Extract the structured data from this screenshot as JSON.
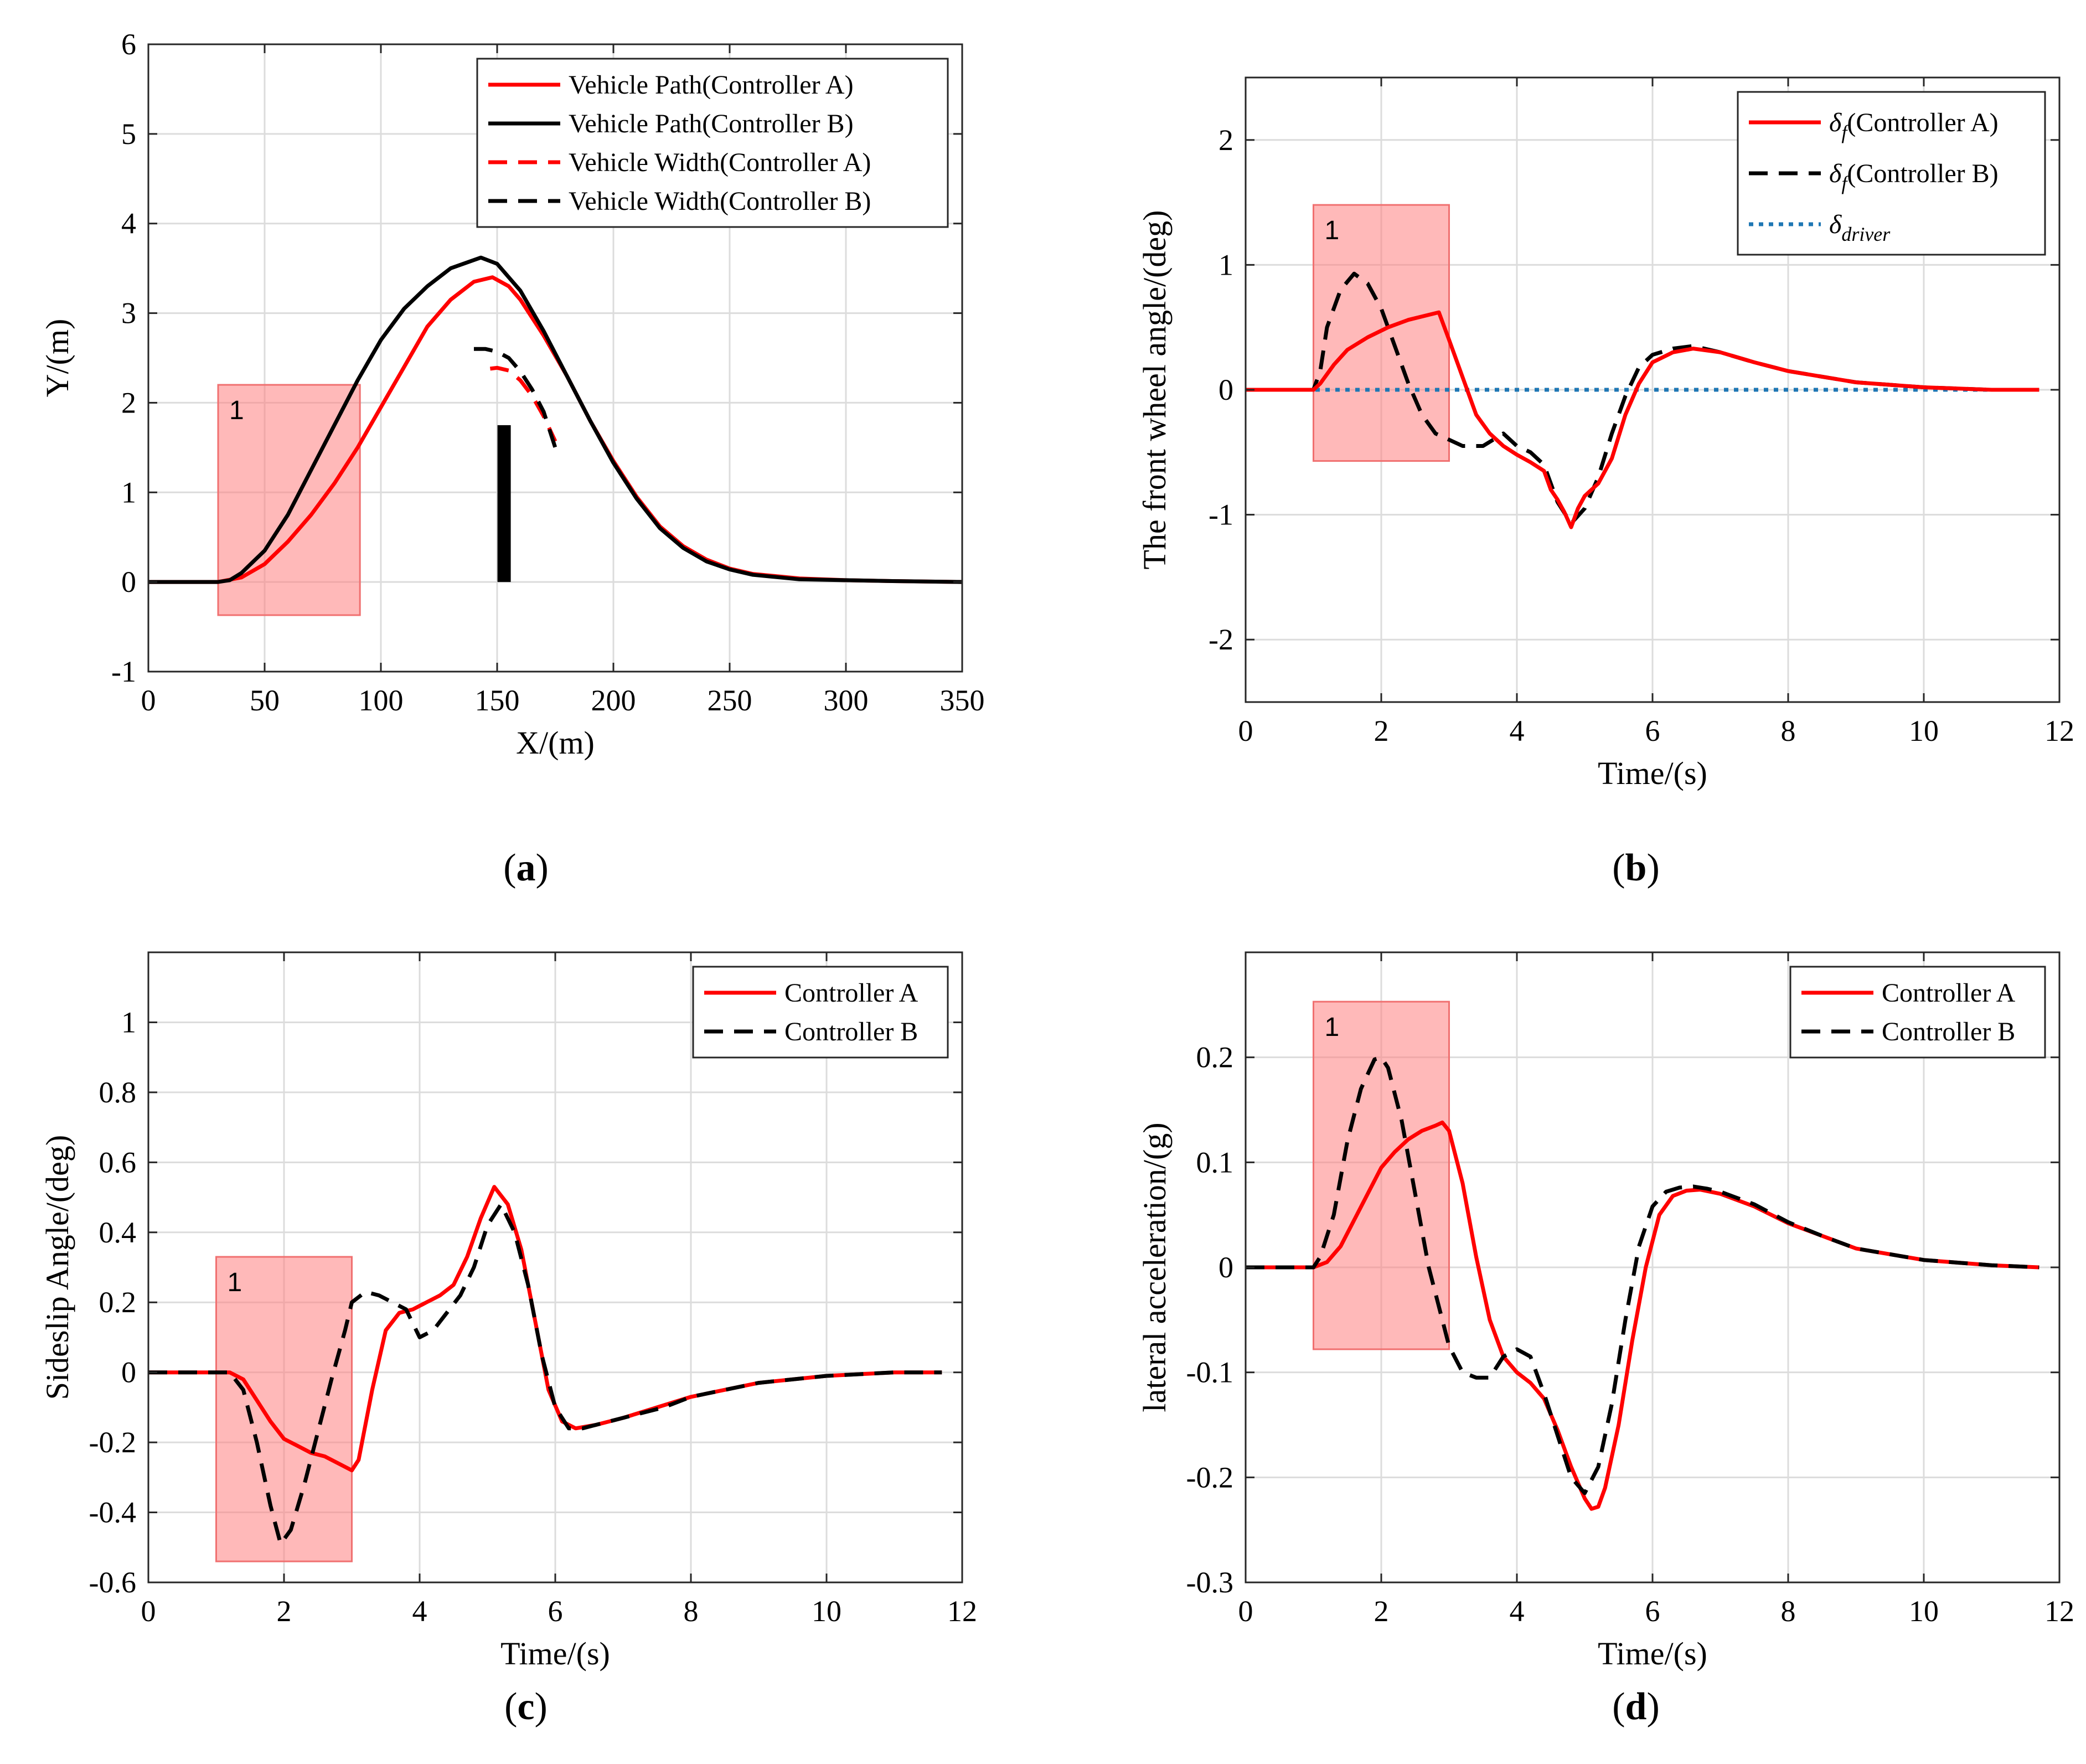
{
  "panels": [
    {
      "id": "a",
      "caption": "(a)"
    },
    {
      "id": "b",
      "caption": "(b)"
    },
    {
      "id": "c",
      "caption": "(c)"
    },
    {
      "id": "d",
      "caption": "(d)"
    }
  ],
  "chart_data": [
    {
      "panel": "a",
      "type": "line",
      "xlabel": "X/(m)",
      "ylabel": "Y/(m)",
      "xlim": [
        0,
        350
      ],
      "ylim": [
        -1,
        6
      ],
      "xticks": [
        0,
        50,
        100,
        150,
        200,
        250,
        300,
        350
      ],
      "yticks": [
        -1,
        0,
        1,
        2,
        3,
        4,
        5,
        6
      ],
      "grid": true,
      "legend": "top-right",
      "region": {
        "label": "1",
        "x": [
          30,
          91
        ],
        "y": [
          -0.37,
          2.2
        ]
      },
      "obstacle": {
        "x": 153,
        "y": [
          0,
          1.75
        ],
        "color": "#000000"
      },
      "series": [
        {
          "name": "Vehicle Path(Controller A)",
          "color": "#ff0000",
          "dash": "solid",
          "x": [
            0,
            30,
            40,
            50,
            60,
            70,
            80,
            90,
            100,
            110,
            120,
            130,
            140,
            148,
            155,
            160,
            170,
            180,
            190,
            200,
            210,
            220,
            230,
            240,
            250,
            260,
            280,
            300,
            320,
            350
          ],
          "y": [
            0,
            0,
            0.05,
            0.2,
            0.45,
            0.75,
            1.1,
            1.5,
            1.95,
            2.4,
            2.85,
            3.15,
            3.35,
            3.4,
            3.3,
            3.15,
            2.75,
            2.3,
            1.8,
            1.35,
            0.95,
            0.62,
            0.4,
            0.25,
            0.15,
            0.09,
            0.04,
            0.02,
            0.01,
            0
          ]
        },
        {
          "name": "Vehicle Path(Controller B)",
          "color": "#000000",
          "dash": "solid",
          "x": [
            0,
            30,
            35,
            40,
            50,
            60,
            70,
            80,
            90,
            100,
            110,
            120,
            130,
            143,
            150,
            160,
            170,
            180,
            190,
            200,
            210,
            220,
            230,
            240,
            250,
            260,
            280,
            300,
            320,
            350
          ],
          "y": [
            0,
            0,
            0.02,
            0.1,
            0.35,
            0.75,
            1.25,
            1.75,
            2.25,
            2.7,
            3.05,
            3.3,
            3.5,
            3.62,
            3.55,
            3.25,
            2.8,
            2.3,
            1.8,
            1.33,
            0.93,
            0.6,
            0.38,
            0.23,
            0.14,
            0.08,
            0.03,
            0.02,
            0.01,
            0
          ]
        },
        {
          "name": "Vehicle Width(Controller A)",
          "color": "#ff0000",
          "dash": "dash",
          "x": [
            147,
            150,
            155,
            160,
            165,
            170,
            175
          ],
          "y": [
            2.38,
            2.39,
            2.36,
            2.25,
            2.08,
            1.85,
            1.57
          ]
        },
        {
          "name": "Vehicle Width(Controller B)",
          "color": "#000000",
          "dash": "dash",
          "x": [
            140,
            145,
            150,
            155,
            160,
            165,
            170,
            175
          ],
          "y": [
            2.6,
            2.6,
            2.57,
            2.5,
            2.35,
            2.15,
            1.9,
            1.5
          ]
        }
      ]
    },
    {
      "panel": "b",
      "type": "line",
      "xlabel": "Time/(s)",
      "ylabel": "The front wheel angle/(deg)",
      "xlim": [
        0,
        12
      ],
      "ylim": [
        -2.5,
        2.5
      ],
      "xticks": [
        0,
        2,
        4,
        6,
        8,
        10,
        12
      ],
      "yticks": [
        -2,
        -1,
        0,
        1,
        2
      ],
      "grid": true,
      "legend": "top-right",
      "region": {
        "label": "1",
        "x": [
          1,
          3
        ],
        "y": [
          -0.57,
          1.48
        ]
      },
      "series": [
        {
          "name": "δf (Controller A)",
          "legend_sym": "δ",
          "legend_sub": "f",
          "legend_rest": "(Controller A)",
          "color": "#ff0000",
          "dash": "solid",
          "x": [
            0,
            1,
            1.1,
            1.3,
            1.5,
            1.8,
            2.1,
            2.4,
            2.7,
            2.85,
            3.0,
            3.2,
            3.4,
            3.6,
            3.8,
            4.0,
            4.2,
            4.4,
            4.5,
            4.6,
            4.7,
            4.8,
            4.9,
            5.0,
            5.2,
            5.4,
            5.6,
            5.8,
            6.0,
            6.3,
            6.6,
            7.0,
            7.5,
            8,
            9,
            10,
            11,
            11.7
          ],
          "y": [
            0,
            0,
            0.05,
            0.2,
            0.32,
            0.42,
            0.5,
            0.56,
            0.6,
            0.62,
            0.4,
            0.1,
            -0.2,
            -0.35,
            -0.45,
            -0.52,
            -0.58,
            -0.65,
            -0.8,
            -0.88,
            -0.98,
            -1.1,
            -0.95,
            -0.85,
            -0.75,
            -0.55,
            -0.2,
            0.05,
            0.22,
            0.3,
            0.33,
            0.3,
            0.22,
            0.15,
            0.06,
            0.02,
            0,
            0
          ]
        },
        {
          "name": "δf (Controller B)",
          "legend_sym": "δ",
          "legend_sub": "f",
          "legend_rest": "(Controller B)",
          "color": "#000000",
          "dash": "dash",
          "x": [
            0,
            1,
            1.1,
            1.2,
            1.4,
            1.6,
            1.8,
            2.0,
            2.2,
            2.4,
            2.6,
            2.8,
            3.0,
            3.2,
            3.5,
            3.8,
            4.0,
            4.2,
            4.4,
            4.6,
            4.8,
            5.0,
            5.2,
            5.4,
            5.6,
            5.8,
            6.0,
            6.3,
            6.6,
            7.0,
            7.5,
            8,
            9,
            10,
            11,
            11.7
          ],
          "y": [
            0,
            0,
            0.15,
            0.5,
            0.8,
            0.93,
            0.85,
            0.65,
            0.35,
            0.05,
            -0.2,
            -0.35,
            -0.4,
            -0.45,
            -0.45,
            -0.35,
            -0.45,
            -0.5,
            -0.6,
            -0.9,
            -1.07,
            -0.95,
            -0.7,
            -0.35,
            -0.05,
            0.18,
            0.28,
            0.33,
            0.35,
            0.3,
            0.22,
            0.15,
            0.06,
            0.02,
            0,
            0
          ]
        },
        {
          "name": "δdriver",
          "legend_sym": "δ",
          "legend_sub": "driver",
          "legend_rest": "",
          "color": "#1f77b4",
          "dash": "dot",
          "x": [
            0,
            11.7
          ],
          "y": [
            0,
            0
          ]
        }
      ]
    },
    {
      "panel": "c",
      "type": "line",
      "xlabel": "Time/(s)",
      "ylabel": "Sideslip Angle/(deg)",
      "xlim": [
        0,
        12
      ],
      "ylim": [
        -0.6,
        1.2
      ],
      "xticks": [
        0,
        2,
        4,
        6,
        8,
        10,
        12
      ],
      "yticks": [
        -0.6,
        -0.4,
        -0.2,
        0,
        0.2,
        0.4,
        0.6,
        0.8,
        1
      ],
      "grid": true,
      "legend": "top-right",
      "region": {
        "label": "1",
        "x": [
          1,
          3
        ],
        "y": [
          -0.54,
          0.33
        ]
      },
      "series": [
        {
          "name": "Controller A",
          "color": "#ff0000",
          "dash": "solid",
          "x": [
            0,
            1,
            1.2,
            1.4,
            1.6,
            1.8,
            2.0,
            2.2,
            2.4,
            2.6,
            2.8,
            3.0,
            3.1,
            3.3,
            3.5,
            3.7,
            3.9,
            4.1,
            4.3,
            4.5,
            4.7,
            4.9,
            5.1,
            5.3,
            5.5,
            5.7,
            5.9,
            6.1,
            6.3,
            6.6,
            7,
            7.5,
            8,
            9,
            10,
            11,
            11.7
          ],
          "y": [
            0,
            0,
            0,
            -0.02,
            -0.08,
            -0.14,
            -0.19,
            -0.21,
            -0.23,
            -0.24,
            -0.26,
            -0.28,
            -0.25,
            -0.05,
            0.12,
            0.17,
            0.18,
            0.2,
            0.22,
            0.25,
            0.33,
            0.44,
            0.53,
            0.48,
            0.35,
            0.15,
            -0.05,
            -0.14,
            -0.16,
            -0.15,
            -0.13,
            -0.1,
            -0.07,
            -0.03,
            -0.01,
            0,
            0
          ]
        },
        {
          "name": "Controller B",
          "color": "#000000",
          "dash": "dash",
          "x": [
            0,
            1,
            1.2,
            1.4,
            1.6,
            1.8,
            1.95,
            2.1,
            2.3,
            2.5,
            2.7,
            2.9,
            3.0,
            3.2,
            3.4,
            3.6,
            3.8,
            4.0,
            4.2,
            4.4,
            4.6,
            4.8,
            5.0,
            5.2,
            5.4,
            5.6,
            5.8,
            6.0,
            6.2,
            6.4,
            6.8,
            7.2,
            7.6,
            8,
            9,
            10,
            11,
            11.7
          ],
          "y": [
            0,
            0,
            0,
            -0.05,
            -0.2,
            -0.38,
            -0.49,
            -0.45,
            -0.32,
            -0.17,
            -0.02,
            0.12,
            0.2,
            0.23,
            0.22,
            0.2,
            0.18,
            0.1,
            0.12,
            0.17,
            0.22,
            0.3,
            0.42,
            0.48,
            0.4,
            0.25,
            0.05,
            -0.1,
            -0.16,
            -0.16,
            -0.14,
            -0.12,
            -0.1,
            -0.07,
            -0.03,
            -0.01,
            0,
            0
          ]
        }
      ]
    },
    {
      "panel": "d",
      "type": "line",
      "xlabel": "Time/(s)",
      "ylabel": "lateral acceleration/(g)",
      "xlim": [
        0,
        12
      ],
      "ylim": [
        -0.3,
        0.3
      ],
      "xticks": [
        0,
        2,
        4,
        6,
        8,
        10,
        12
      ],
      "yticks": [
        -0.3,
        -0.2,
        -0.1,
        0,
        0.1,
        0.2
      ],
      "grid": true,
      "legend": "top-right",
      "region": {
        "label": "1",
        "x": [
          1,
          3
        ],
        "y": [
          -0.078,
          0.253
        ]
      },
      "series": [
        {
          "name": "Controller A",
          "color": "#ff0000",
          "dash": "solid",
          "x": [
            0,
            1,
            1.2,
            1.4,
            1.6,
            1.8,
            2.0,
            2.2,
            2.4,
            2.6,
            2.8,
            2.9,
            3.0,
            3.2,
            3.4,
            3.6,
            3.8,
            4.0,
            4.2,
            4.4,
            4.6,
            4.8,
            5.0,
            5.1,
            5.2,
            5.3,
            5.5,
            5.7,
            5.9,
            6.1,
            6.3,
            6.5,
            6.7,
            7.0,
            7.5,
            8,
            8.5,
            9,
            10,
            11,
            11.7
          ],
          "y": [
            0,
            0,
            0.005,
            0.02,
            0.045,
            0.07,
            0.095,
            0.11,
            0.122,
            0.13,
            0.135,
            0.138,
            0.13,
            0.08,
            0.01,
            -0.05,
            -0.085,
            -0.1,
            -0.11,
            -0.125,
            -0.155,
            -0.19,
            -0.22,
            -0.23,
            -0.228,
            -0.21,
            -0.15,
            -0.07,
            0,
            0.05,
            0.068,
            0.073,
            0.074,
            0.07,
            0.058,
            0.042,
            0.03,
            0.018,
            0.007,
            0.002,
            0
          ]
        },
        {
          "name": "Controller B",
          "color": "#000000",
          "dash": "dash",
          "x": [
            0,
            1,
            1.1,
            1.3,
            1.5,
            1.7,
            1.9,
            2.0,
            2.1,
            2.3,
            2.5,
            2.7,
            2.9,
            3.0,
            3.2,
            3.4,
            3.6,
            3.8,
            4.0,
            4.2,
            4.4,
            4.6,
            4.8,
            5.0,
            5.2,
            5.4,
            5.6,
            5.8,
            6.0,
            6.2,
            6.4,
            6.6,
            6.8,
            7.0,
            7.5,
            8,
            8.5,
            9,
            10,
            11,
            11.7
          ],
          "y": [
            0,
            0,
            0.01,
            0.05,
            0.12,
            0.17,
            0.198,
            0.2,
            0.19,
            0.14,
            0.07,
            0.0,
            -0.05,
            -0.075,
            -0.1,
            -0.105,
            -0.105,
            -0.085,
            -0.078,
            -0.085,
            -0.12,
            -0.16,
            -0.2,
            -0.215,
            -0.19,
            -0.13,
            -0.05,
            0.02,
            0.058,
            0.072,
            0.076,
            0.077,
            0.075,
            0.072,
            0.06,
            0.043,
            0.03,
            0.018,
            0.007,
            0.002,
            0
          ]
        }
      ]
    }
  ]
}
